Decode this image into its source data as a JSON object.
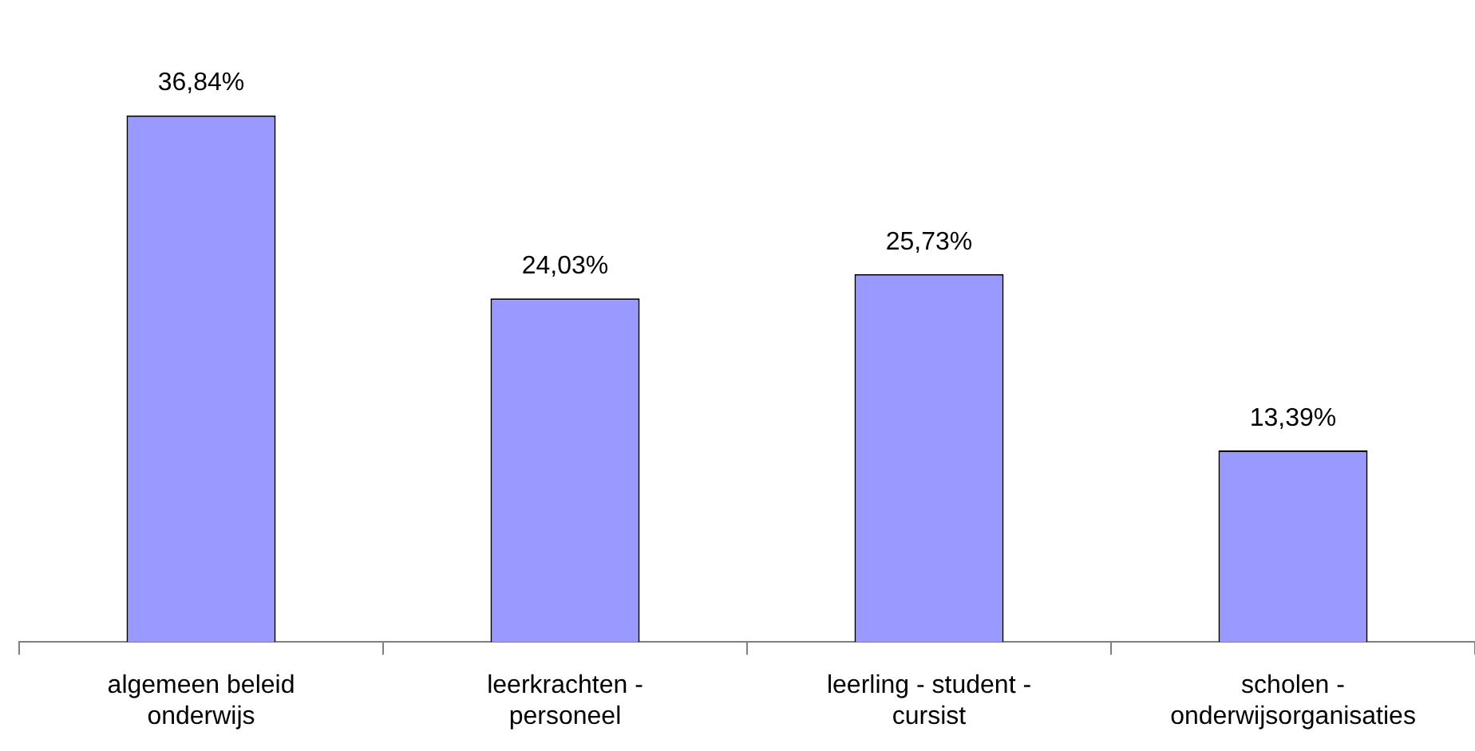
{
  "chart_data": {
    "type": "bar",
    "categories": [
      "algemeen beleid onderwijs",
      "leerkrachten - personeel",
      "leerling - student - cursist",
      "scholen - onderwijsorganisaties"
    ],
    "values": [
      36.84,
      24.03,
      25.73,
      13.39
    ],
    "value_labels": [
      "36,84%",
      "24,03%",
      "25,73%",
      "13,39%"
    ],
    "color": "#9999ff",
    "grid": false,
    "legend": false
  }
}
